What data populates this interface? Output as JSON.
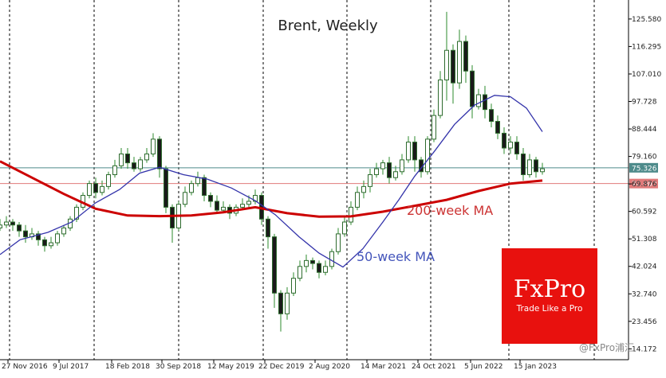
{
  "chart_data": {
    "type": "candlestick",
    "title": "Brent, Weekly",
    "y_ticks": [
      "125.580",
      "116.295",
      "107.010",
      "97.728",
      "88.444",
      "79.160",
      "69.876",
      "60.592",
      "51.308",
      "42.024",
      "32.740",
      "23.456",
      "14.172"
    ],
    "y_tick_values": [
      125.58,
      116.295,
      107.01,
      97.728,
      88.444,
      79.16,
      69.876,
      60.592,
      51.308,
      42.024,
      32.74,
      23.456,
      14.172
    ],
    "x_ticks": [
      "27 Nov 2016",
      "9 Jul 2017",
      "18 Feb 2018",
      "30 Sep 2018",
      "12 May 2019",
      "22 Dec 2019",
      "2 Aug 2020",
      "14 Mar 2021",
      "24 Oct 2021",
      "5 Jun 2022",
      "15 Jan 2023"
    ],
    "ylim": [
      10.5,
      132.0
    ],
    "grid": "vertical dashed",
    "current_price": {
      "label": "75.326",
      "value": 75.326,
      "color": "#4e8b8b"
    },
    "level_line": {
      "label": "70.000",
      "value": 70.0,
      "color": "#e07a7a"
    },
    "ma200": {
      "name": "200-week MA",
      "color": "#cc0000",
      "points": [
        [
          0,
          77.5
        ],
        [
          40,
          72
        ],
        [
          80,
          66.5
        ],
        [
          120,
          61.5
        ],
        [
          160,
          59.2
        ],
        [
          200,
          59.0
        ],
        [
          240,
          59.2
        ],
        [
          280,
          60.3
        ],
        [
          320,
          62.0
        ],
        [
          360,
          60.0
        ],
        [
          400,
          58.8
        ],
        [
          440,
          58.9
        ],
        [
          480,
          60.5
        ],
        [
          520,
          62.5
        ],
        [
          560,
          64.5
        ],
        [
          600,
          67.5
        ],
        [
          640,
          70.0
        ],
        [
          680,
          71.0
        ]
      ]
    },
    "ma50": {
      "name": "50-week MA",
      "color": "#3333aa",
      "points": [
        [
          0,
          46
        ],
        [
          25,
          51
        ],
        [
          60,
          53.5
        ],
        [
          90,
          57
        ],
        [
          120,
          63.5
        ],
        [
          150,
          68
        ],
        [
          175,
          73.5
        ],
        [
          200,
          75.5
        ],
        [
          230,
          73
        ],
        [
          260,
          71.5
        ],
        [
          290,
          68.5
        ],
        [
          320,
          64.2
        ],
        [
          345,
          59.5
        ],
        [
          375,
          52
        ],
        [
          400,
          46.5
        ],
        [
          430,
          41.8
        ],
        [
          455,
          48
        ],
        [
          480,
          57
        ],
        [
          500,
          64.5
        ],
        [
          520,
          72.5
        ],
        [
          545,
          81
        ],
        [
          570,
          90
        ],
        [
          595,
          96.5
        ],
        [
          620,
          99.8
        ],
        [
          640,
          99.3
        ],
        [
          660,
          95.5
        ],
        [
          680,
          87.5
        ]
      ]
    },
    "candles": [
      [
        0,
        55,
        56,
        58,
        54
      ],
      [
        8,
        56,
        57,
        59,
        55
      ],
      [
        16,
        57,
        56,
        58,
        54
      ],
      [
        24,
        56,
        54,
        57,
        52
      ],
      [
        32,
        54,
        52,
        56,
        50
      ],
      [
        40,
        52,
        53,
        55,
        51
      ],
      [
        48,
        53,
        51,
        54,
        49
      ],
      [
        56,
        51,
        49,
        52,
        47
      ],
      [
        64,
        49,
        50,
        52,
        48
      ],
      [
        72,
        50,
        53,
        54,
        49
      ],
      [
        80,
        53,
        55,
        56,
        52
      ],
      [
        88,
        55,
        58,
        59,
        54
      ],
      [
        96,
        58,
        62,
        63,
        57
      ],
      [
        104,
        62,
        66,
        67,
        61
      ],
      [
        112,
        66,
        70,
        71,
        65
      ],
      [
        120,
        70,
        67,
        72,
        65
      ],
      [
        128,
        67,
        69,
        71,
        66
      ],
      [
        136,
        69,
        73,
        74,
        68
      ],
      [
        144,
        73,
        76,
        78,
        72
      ],
      [
        152,
        76,
        80,
        82,
        75
      ],
      [
        160,
        80,
        77,
        82,
        75
      ],
      [
        168,
        77,
        75,
        79,
        74
      ],
      [
        176,
        75,
        78,
        79,
        74
      ],
      [
        184,
        78,
        80,
        82,
        77
      ],
      [
        192,
        80,
        85,
        87,
        79
      ],
      [
        200,
        85,
        75,
        86,
        72
      ],
      [
        208,
        75,
        62,
        76,
        60
      ],
      [
        216,
        62,
        55,
        63,
        50
      ],
      [
        224,
        55,
        63,
        64,
        54
      ],
      [
        232,
        63,
        67,
        69,
        62
      ],
      [
        240,
        67,
        70,
        71,
        66
      ],
      [
        248,
        70,
        72,
        74,
        69
      ],
      [
        256,
        72,
        66,
        73,
        64
      ],
      [
        264,
        66,
        64,
        67,
        62
      ],
      [
        272,
        64,
        61,
        66,
        60
      ],
      [
        280,
        61,
        62,
        64,
        60
      ],
      [
        288,
        62,
        60,
        63,
        58
      ],
      [
        296,
        60,
        62,
        63,
        59
      ],
      [
        304,
        62,
        63,
        65,
        61
      ],
      [
        312,
        63,
        64,
        66,
        62
      ],
      [
        320,
        64,
        66,
        68,
        63
      ],
      [
        328,
        66,
        58,
        67,
        56
      ],
      [
        336,
        58,
        52,
        59,
        48
      ],
      [
        344,
        52,
        33,
        53,
        28
      ],
      [
        352,
        33,
        26,
        34,
        20
      ],
      [
        360,
        26,
        33,
        35,
        24
      ],
      [
        368,
        33,
        38,
        40,
        32
      ],
      [
        376,
        38,
        42,
        44,
        37
      ],
      [
        384,
        42,
        44,
        46,
        40
      ],
      [
        392,
        44,
        43,
        45,
        41
      ],
      [
        400,
        43,
        40,
        44,
        38
      ],
      [
        408,
        40,
        42,
        44,
        39
      ],
      [
        416,
        42,
        47,
        48,
        41
      ],
      [
        424,
        47,
        53,
        55,
        46
      ],
      [
        432,
        53,
        57,
        59,
        52
      ],
      [
        440,
        57,
        62,
        64,
        56
      ],
      [
        448,
        62,
        67,
        69,
        61
      ],
      [
        456,
        67,
        69,
        71,
        65
      ],
      [
        464,
        69,
        73,
        75,
        67
      ],
      [
        472,
        73,
        75,
        77,
        72
      ],
      [
        480,
        75,
        77,
        78,
        73
      ],
      [
        488,
        77,
        72,
        79,
        70
      ],
      [
        496,
        72,
        74,
        76,
        71
      ],
      [
        504,
        74,
        78,
        80,
        73
      ],
      [
        512,
        78,
        84,
        86,
        77
      ],
      [
        520,
        84,
        78,
        86,
        74
      ],
      [
        528,
        78,
        74,
        79,
        72
      ],
      [
        536,
        74,
        85,
        86,
        73
      ],
      [
        544,
        85,
        93,
        95,
        84
      ],
      [
        552,
        93,
        105,
        108,
        92
      ],
      [
        560,
        105,
        115,
        128,
        98
      ],
      [
        568,
        115,
        104,
        117,
        97
      ],
      [
        576,
        104,
        118,
        122,
        102
      ],
      [
        584,
        118,
        108,
        120,
        104
      ],
      [
        592,
        108,
        96,
        110,
        92
      ],
      [
        600,
        96,
        100,
        102,
        95
      ],
      [
        608,
        100,
        95,
        103,
        92
      ],
      [
        616,
        95,
        91,
        97,
        89
      ],
      [
        624,
        91,
        87,
        93,
        85
      ],
      [
        632,
        87,
        82,
        89,
        80
      ],
      [
        640,
        82,
        84,
        86,
        80
      ],
      [
        648,
        84,
        80,
        86,
        78
      ],
      [
        656,
        80,
        73,
        82,
        71
      ],
      [
        664,
        73,
        78,
        80,
        72
      ],
      [
        672,
        78,
        74,
        79,
        72
      ],
      [
        680,
        74,
        75,
        77,
        73
      ]
    ],
    "annotations": [
      {
        "text": "200-week MA",
        "color": "#cc3333"
      },
      {
        "text": "50-week MA",
        "color": "#4455bb"
      }
    ]
  },
  "logo": {
    "brand": "FxPro",
    "tagline": "Trade Like a Pro",
    "bg": "#e8110e"
  },
  "watermark": "@FxPro浦汇"
}
